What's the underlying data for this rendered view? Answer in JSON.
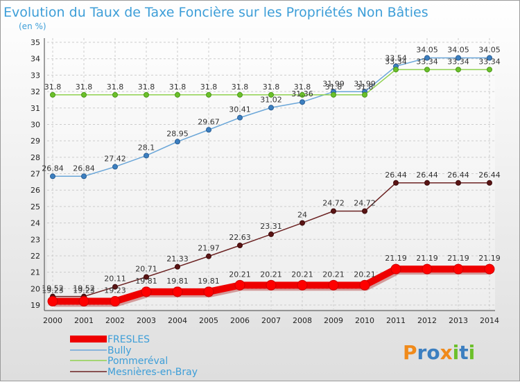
{
  "chart_data": {
    "type": "line",
    "title": "Evolution du Taux de Taxe Foncière sur les Propriétés Non Bâties",
    "subtitle": "(en %)",
    "x": [
      "2000",
      "2001",
      "2002",
      "2003",
      "2004",
      "2005",
      "2006",
      "2007",
      "2008",
      "2009",
      "2010",
      "2011",
      "2012",
      "2013",
      "2014"
    ],
    "y_ticks": [
      "19",
      "20",
      "21",
      "22",
      "23",
      "24",
      "25",
      "26",
      "27",
      "28",
      "29",
      "30",
      "31",
      "32",
      "33",
      "34",
      "35"
    ],
    "ylim": [
      19,
      35
    ],
    "grid": true,
    "legend_position": "bottom-left",
    "series": [
      {
        "name": "FRESLES",
        "color": "#ee0000",
        "values": [
          19.23,
          19.23,
          19.23,
          19.81,
          19.81,
          19.81,
          20.21,
          20.21,
          20.21,
          20.21,
          20.21,
          21.19,
          21.19,
          21.19,
          21.19
        ],
        "labels": [
          "19.23",
          "19.23",
          "19.23",
          "19.81",
          "19.81",
          "19.81",
          "20.21",
          "20.21",
          "20.21",
          "20.21",
          "20.21",
          "21.19",
          "21.19",
          "21.19",
          "21.19"
        ]
      },
      {
        "name": "Bully",
        "color": "#6aa6d8",
        "values": [
          26.84,
          26.84,
          27.42,
          28.1,
          28.95,
          29.67,
          30.41,
          31.02,
          31.36,
          31.99,
          31.99,
          33.54,
          34.05,
          34.05,
          34.05
        ],
        "labels": [
          "26.84",
          "26.84",
          "27.42",
          "28.1",
          "28.95",
          "29.67",
          "30.41",
          "31.02",
          "31.36",
          "31.99",
          "31.99",
          "33.54",
          "34.05",
          "34.05",
          "34.05"
        ]
      },
      {
        "name": "Pommeréval",
        "color": "#8fd14f",
        "values": [
          31.8,
          31.8,
          31.8,
          31.8,
          31.8,
          31.8,
          31.8,
          31.8,
          31.8,
          31.8,
          31.8,
          33.34,
          33.34,
          33.34,
          33.34
        ],
        "labels": [
          "31.8",
          "31.8",
          "31.8",
          "31.8",
          "31.8",
          "31.8",
          "31.8",
          "31.8",
          "31.8",
          "31.8",
          "31.8",
          "33.34",
          "33.34",
          "33.34",
          "33.34"
        ]
      },
      {
        "name": "Mesnières-en-Bray",
        "color": "#6b2222",
        "values": [
          19.52,
          19.52,
          20.11,
          20.71,
          21.33,
          21.97,
          22.63,
          23.31,
          24,
          24.72,
          24.72,
          26.44,
          26.44,
          26.44,
          26.44
        ],
        "labels": [
          "19.52",
          "19.52",
          "20.11",
          "20.71",
          "21.33",
          "21.97",
          "22.63",
          "23.31",
          "24",
          "24.72",
          "24.72",
          "26.44",
          "26.44",
          "26.44",
          "26.44"
        ]
      }
    ]
  },
  "logo": {
    "text": "Proxiti"
  }
}
